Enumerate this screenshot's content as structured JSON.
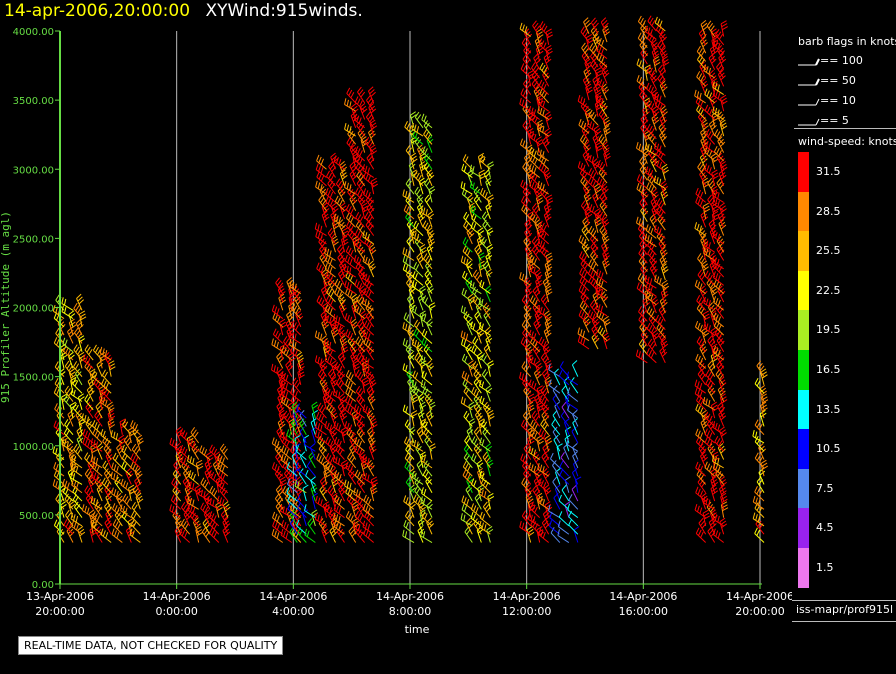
{
  "header": {
    "timestamp": "14-apr-2006,20:00:00",
    "product": "XYWind:915winds."
  },
  "colors": {
    "axis": "#66dd44",
    "grid": "#bbbbbb",
    "timestamp": "#ffff00",
    "speed_bins": [
      "#ff0000",
      "#ff8800",
      "#ffbb00",
      "#ffff00",
      "#aaee22",
      "#00dd00",
      "#00ffff",
      "#0000ff",
      "#5588ee",
      "#9922ee",
      "#ee77ee"
    ]
  },
  "chart_data": {
    "type": "scatter",
    "title": "XYWind:915winds.",
    "xlabel": "time",
    "ylabel": "915 Profiler Altitude (m agl)",
    "ylim": [
      0,
      4000
    ],
    "xlim_hours": [
      0,
      24
    ],
    "grid": true,
    "y_ticks": [
      "0.00",
      "500.00",
      "1000.00",
      "1500.00",
      "2000.00",
      "2500.00",
      "3000.00",
      "3500.00",
      "4000.00"
    ],
    "x_ticks": [
      {
        "date": "13-Apr-2006",
        "time": "20:00:00"
      },
      {
        "date": "14-Apr-2006",
        "time": "0:00:00"
      },
      {
        "date": "14-Apr-2006",
        "time": "4:00:00"
      },
      {
        "date": "14-Apr-2006",
        "time": "8:00:00"
      },
      {
        "date": "14-Apr-2006",
        "time": "12:00:00"
      },
      {
        "date": "14-Apr-2006",
        "time": "16:00:00"
      },
      {
        "date": "14-Apr-2006",
        "time": "20:00:00"
      }
    ],
    "barb_legend": {
      "title": "barb flags in knots",
      "entries": [
        "== 100",
        "== 50",
        "== 10",
        "== 5"
      ]
    },
    "speed_legend": {
      "title": "wind-speed: knots",
      "levels": [
        "31.5",
        "28.5",
        "25.5",
        "22.5",
        "19.5",
        "16.5",
        "13.5",
        "10.5",
        "7.5",
        "4.5",
        "1.5"
      ]
    },
    "series": [
      {
        "time": "13-Apr-2006 20:00",
        "alt_min": 300,
        "alt_max": 2000,
        "dominant_speed": 25.5
      },
      {
        "time": "13-Apr-2006 21:00",
        "alt_min": 300,
        "alt_max": 1650,
        "dominant_speed": 28.5
      },
      {
        "time": "13-Apr-2006 22:00",
        "alt_min": 300,
        "alt_max": 1100,
        "dominant_speed": 28.5
      },
      {
        "time": "14-Apr-2006 00:00",
        "alt_min": 300,
        "alt_max": 1050,
        "dominant_speed": 31.5
      },
      {
        "time": "14-Apr-2006 01:00",
        "alt_min": 300,
        "alt_max": 900,
        "dominant_speed": 31.5
      },
      {
        "time": "14-Apr-2006 03:30",
        "alt_min": 300,
        "alt_max": 2100,
        "dominant_speed": 31.5
      },
      {
        "time": "14-Apr-2006 04:00",
        "alt_min": 300,
        "alt_max": 1200,
        "dominant_speed": 13.5
      },
      {
        "time": "14-Apr-2006 05:00",
        "alt_min": 300,
        "alt_max": 3000,
        "dominant_speed": 31.5
      },
      {
        "time": "14-Apr-2006 06:00",
        "alt_min": 300,
        "alt_max": 3500,
        "dominant_speed": 31.5
      },
      {
        "time": "14-Apr-2006 08:00",
        "alt_min": 300,
        "alt_max": 3350,
        "dominant_speed": 22.5
      },
      {
        "time": "14-Apr-2006 10:00",
        "alt_min": 300,
        "alt_max": 3000,
        "dominant_speed": 22.5
      },
      {
        "time": "14-Apr-2006 12:00",
        "alt_min": 300,
        "alt_max": 4000,
        "dominant_speed": 31.5
      },
      {
        "time": "14-Apr-2006 13:00",
        "alt_min": 300,
        "alt_max": 1500,
        "dominant_speed": 10.5
      },
      {
        "time": "14-Apr-2006 14:00",
        "alt_min": 1700,
        "alt_max": 4000,
        "dominant_speed": 31.5
      },
      {
        "time": "14-Apr-2006 16:00",
        "alt_min": 1600,
        "alt_max": 4000,
        "dominant_speed": 31.5
      },
      {
        "time": "14-Apr-2006 18:00",
        "alt_min": 300,
        "alt_max": 4000,
        "dominant_speed": 31.5
      },
      {
        "time": "14-Apr-2006 20:00",
        "alt_min": 300,
        "alt_max": 1550,
        "dominant_speed": 25.5
      }
    ]
  },
  "source": "iss-mapr/prof915l",
  "quality_note": "REAL-TIME DATA, NOT CHECKED FOR QUALITY"
}
